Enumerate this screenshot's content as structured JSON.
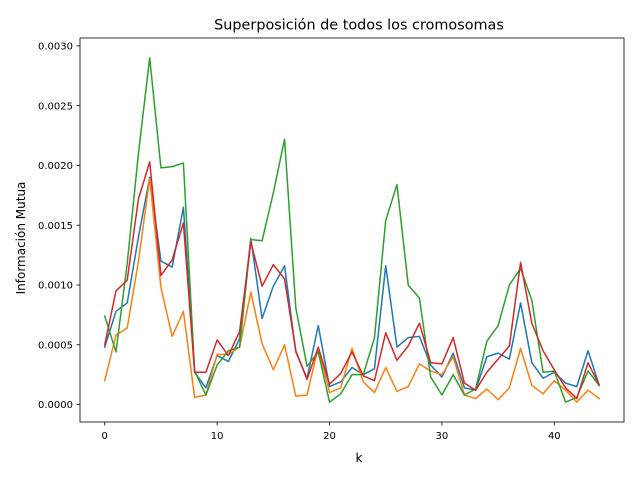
{
  "chart_data": {
    "type": "line",
    "title": "Superposición de todos los cromosomas",
    "xlabel": "k",
    "ylabel": "Información Mutua",
    "xlim": [
      -2.2,
      46.2
    ],
    "ylim": [
      -0.000146,
      0.003066
    ],
    "xticks": [
      0,
      10,
      20,
      30,
      40
    ],
    "xtick_labels": [
      "0",
      "10",
      "20",
      "30",
      "40"
    ],
    "yticks": [
      0.0,
      0.0005,
      0.001,
      0.0015,
      0.002,
      0.0025,
      0.003
    ],
    "ytick_labels": [
      "0.0000",
      "0.0005",
      "0.0010",
      "0.0015",
      "0.0020",
      "0.0025",
      "0.0030"
    ],
    "grid": false,
    "x": [
      0,
      1,
      2,
      3,
      4,
      5,
      6,
      7,
      8,
      9,
      10,
      11,
      12,
      13,
      14,
      15,
      16,
      17,
      18,
      19,
      20,
      21,
      22,
      23,
      24,
      25,
      26,
      27,
      28,
      29,
      30,
      31,
      32,
      33,
      34,
      35,
      36,
      37,
      38,
      39,
      40,
      41,
      42,
      43,
      44
    ],
    "series": [
      {
        "color": "#1f77b4",
        "values": [
          0.00048,
          0.00078,
          0.00085,
          0.0014,
          0.0019,
          0.0012,
          0.00115,
          0.00165,
          0.00027,
          0.00014,
          0.00041,
          0.00036,
          0.00055,
          0.00139,
          0.00072,
          0.00099,
          0.00116,
          0.00044,
          0.00022,
          0.00066,
          0.00015,
          0.00019,
          0.00031,
          0.00025,
          0.0003,
          0.00116,
          0.00048,
          0.00056,
          0.00057,
          0.00033,
          0.00023,
          0.00043,
          0.00014,
          0.00012,
          0.0004,
          0.00043,
          0.00038,
          0.00085,
          0.00035,
          0.00022,
          0.00027,
          0.00018,
          0.00015,
          0.00045,
          0.00016
        ]
      },
      {
        "color": "#ff7f0e",
        "values": [
          0.0002,
          0.00058,
          0.00064,
          0.0012,
          0.00189,
          0.00098,
          0.00057,
          0.00078,
          6e-05,
          8e-05,
          0.00042,
          0.00042,
          0.00048,
          0.00094,
          0.00051,
          0.00029,
          0.0005,
          7e-05,
          8e-05,
          0.00048,
          0.0001,
          0.00014,
          0.00047,
          0.00019,
          0.0001,
          0.00031,
          0.00011,
          0.00015,
          0.00034,
          0.00028,
          0.00025,
          0.0004,
          8e-05,
          5e-05,
          0.00013,
          4e-05,
          0.00014,
          0.00047,
          0.00016,
          9e-05,
          0.0002,
          0.00012,
          2e-05,
          0.00012,
          5e-05
        ]
      },
      {
        "color": "#2ca02c",
        "values": [
          0.00074,
          0.00044,
          0.00118,
          0.0021,
          0.0029,
          0.00198,
          0.00199,
          0.00202,
          0.00028,
          8e-05,
          0.00033,
          0.00045,
          0.00048,
          0.00138,
          0.00137,
          0.00177,
          0.00222,
          0.00081,
          0.00032,
          0.00044,
          2e-05,
          9e-05,
          0.00025,
          0.00025,
          0.00056,
          0.00154,
          0.00184,
          0.001,
          0.00089,
          0.00023,
          8e-05,
          0.00025,
          8e-05,
          0.00013,
          0.00053,
          0.00066,
          0.001,
          0.00114,
          0.00087,
          0.00027,
          0.00028,
          2e-05,
          6e-05,
          0.00028,
          0.00016
        ]
      },
      {
        "color": "#d62728",
        "values": [
          0.0005,
          0.00095,
          0.00104,
          0.00172,
          0.00203,
          0.00108,
          0.00121,
          0.00152,
          0.00027,
          0.00027,
          0.00054,
          0.00041,
          0.00061,
          0.00136,
          0.00099,
          0.00117,
          0.00105,
          0.00045,
          0.00021,
          0.00048,
          0.00017,
          0.00026,
          0.00044,
          0.00024,
          0.0002,
          0.0006,
          0.00037,
          0.00049,
          0.00068,
          0.00035,
          0.00034,
          0.00056,
          0.00018,
          0.00012,
          0.00027,
          0.00038,
          0.00049,
          0.00119,
          0.00068,
          0.00045,
          0.00029,
          0.00014,
          5e-05,
          0.00035,
          0.00016
        ]
      }
    ]
  }
}
